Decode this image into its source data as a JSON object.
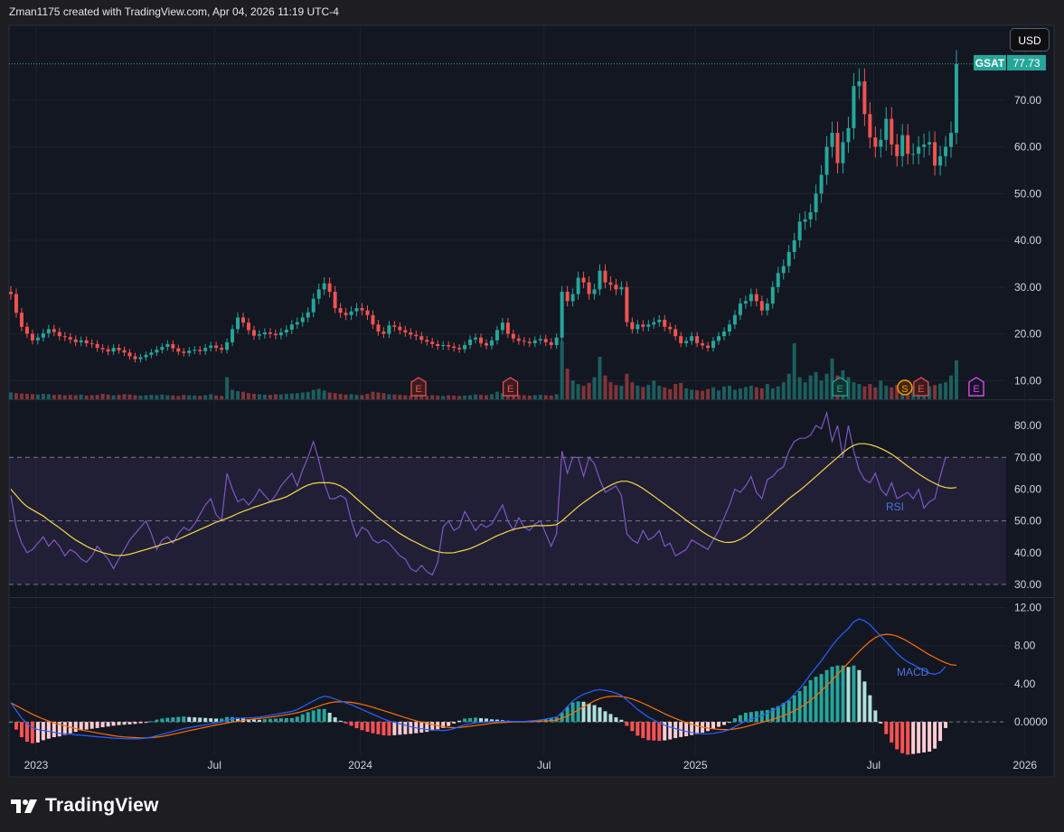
{
  "header": {
    "attribution": "Zman1175 created with TradingView.com, Apr 04, 2026 11:19 UTC-4"
  },
  "toolbar": {
    "currency_label": "USD"
  },
  "brand": {
    "logo_icon": "tradingview-logo-icon",
    "name": "TradingView"
  },
  "colors": {
    "up": "#26a69a",
    "down": "#ef5350",
    "rsi": "#7e57c2",
    "rsi_ma": "#f5d547",
    "macd": "#2962ff",
    "signal": "#ff6d00",
    "bg": "#131722"
  },
  "chart_data": [
    {
      "type": "candlestick",
      "symbol": "GSAT",
      "last_price": "77.73",
      "ylim": [
        6,
        86
      ],
      "y_ticks": [
        "10.00",
        "20.00",
        "30.00",
        "40.00",
        "50.00",
        "60.00",
        "70.00"
      ],
      "x_ticks": [
        "2023",
        "Jul",
        "2024",
        "Jul",
        "2025",
        "Jul",
        "2026"
      ],
      "closes": [
        28.5,
        24.5,
        21.5,
        20.0,
        18.6,
        19.2,
        20.1,
        21.0,
        20.4,
        19.5,
        19.3,
        18.8,
        18.2,
        18.6,
        18.0,
        17.8,
        17.0,
        16.7,
        16.2,
        17.0,
        16.5,
        16.0,
        15.2,
        14.6,
        15.0,
        15.5,
        16.0,
        16.6,
        17.2,
        17.8,
        16.9,
        16.2,
        15.9,
        16.4,
        16.6,
        16.3,
        17.0,
        17.5,
        17.0,
        16.6,
        18.2,
        21.0,
        23.5,
        22.4,
        20.8,
        19.6,
        19.9,
        20.3,
        20.0,
        19.7,
        20.3,
        20.9,
        22.0,
        22.5,
        23.5,
        24.6,
        27.5,
        29.5,
        30.8,
        29.0,
        25.5,
        24.5,
        24.0,
        24.8,
        25.5,
        25.0,
        24.0,
        22.0,
        20.5,
        20.0,
        21.8,
        21.5,
        20.8,
        20.3,
        19.8,
        19.5,
        18.7,
        18.3,
        17.8,
        17.4,
        17.6,
        17.3,
        17.0,
        16.7,
        17.6,
        18.8,
        19.2,
        18.0,
        17.5,
        18.6,
        20.8,
        22.4,
        20.0,
        19.0,
        18.5,
        18.3,
        18.0,
        18.6,
        18.9,
        18.2,
        17.6,
        19.2,
        29.0,
        27.0,
        28.5,
        32.0,
        31.0,
        28.5,
        29.5,
        33.5,
        31.0,
        30.5,
        29.5,
        30.0,
        22.5,
        21.0,
        22.0,
        21.5,
        22.0,
        22.5,
        23.0,
        21.5,
        21.0,
        19.5,
        18.0,
        18.5,
        19.5,
        18.0,
        17.5,
        17.0,
        18.5,
        19.5,
        20.5,
        22.0,
        24.0,
        26.5,
        27.0,
        28.5,
        27.0,
        25.0,
        26.5,
        30.0,
        33.0,
        34.5,
        37.5,
        40.0,
        44.0,
        44.5,
        46.0,
        50.0,
        54.0,
        60.0,
        63.0,
        56.5,
        61.0,
        64.0,
        73.0,
        74.0,
        67.0,
        62.0,
        60.0,
        61.5,
        66.0,
        60.5,
        58.0,
        62.5,
        58.5,
        58.5,
        60.0,
        60.5,
        61.0,
        56.0,
        58.0,
        60.0,
        63.0,
        77.73
      ],
      "volumes": [
        2.0,
        1.8,
        1.7,
        1.6,
        1.5,
        1.4,
        1.6,
        1.5,
        1.3,
        1.4,
        1.2,
        1.3,
        1.2,
        1.4,
        1.1,
        1.2,
        1.3,
        1.6,
        1.4,
        1.2,
        1.3,
        1.5,
        1.4,
        1.2,
        1.1,
        1.2,
        1.3,
        1.2,
        1.4,
        1.2,
        1.1,
        1.0,
        1.3,
        1.2,
        1.1,
        1.0,
        1.2,
        1.5,
        1.1,
        1.0,
        6.5,
        2.8,
        2.4,
        2.2,
        1.8,
        1.6,
        1.5,
        1.4,
        1.3,
        1.5,
        1.4,
        1.6,
        1.7,
        1.8,
        2.0,
        2.2,
        2.8,
        3.1,
        2.6,
        2.0,
        1.8,
        1.6,
        1.4,
        1.5,
        1.3,
        1.2,
        1.6,
        2.2,
        2.0,
        1.8,
        1.5,
        1.4,
        1.3,
        1.2,
        1.1,
        1.2,
        1.1,
        1.0,
        1.2,
        1.1,
        1.0,
        1.2,
        1.1,
        1.0,
        1.1,
        1.2,
        1.4,
        1.3,
        1.2,
        1.5,
        2.2,
        1.8,
        1.6,
        1.4,
        1.3,
        1.2,
        1.1,
        1.2,
        1.3,
        1.2,
        1.1,
        1.5,
        17.0,
        9.0,
        5.5,
        4.5,
        4.0,
        4.8,
        6.5,
        12.5,
        7.0,
        5.0,
        4.2,
        4.0,
        7.5,
        5.0,
        4.0,
        3.6,
        4.2,
        5.5,
        4.0,
        3.5,
        3.0,
        4.5,
        4.8,
        3.2,
        2.8,
        2.6,
        2.5,
        3.0,
        3.5,
        2.6,
        3.8,
        4.0,
        2.8,
        3.2,
        3.6,
        4.0,
        3.5,
        3.2,
        4.5,
        3.2,
        3.8,
        5.0,
        7.5,
        16.5,
        6.5,
        5.0,
        7.0,
        8.0,
        5.5,
        7.5,
        12.0,
        7.0,
        8.5,
        6.5,
        5.0,
        4.5,
        3.8,
        4.5,
        3.5,
        5.5,
        4.0,
        3.5,
        4.2,
        4.8,
        3.6,
        3.5,
        4.0,
        4.5,
        3.8,
        4.2,
        4.6,
        5.0,
        7.0,
        11.5
      ],
      "earnings_markers": [
        {
          "label": "E",
          "kind": "past-down"
        },
        {
          "label": "E",
          "kind": "past-down"
        },
        {
          "label": "E",
          "kind": "past-up"
        },
        {
          "label": "S",
          "kind": "split"
        },
        {
          "label": "E",
          "kind": "past-down"
        },
        {
          "label": "E",
          "kind": "past-down"
        },
        {
          "label": "E",
          "kind": "past-up"
        },
        {
          "label": "E",
          "kind": "past-up"
        },
        {
          "label": "E",
          "kind": "past-down"
        },
        {
          "label": "E",
          "kind": "upcoming"
        }
      ]
    },
    {
      "type": "line",
      "name": "RSI",
      "ylim": [
        26,
        88
      ],
      "y_ticks": [
        "30.00",
        "40.00",
        "50.00",
        "60.00",
        "70.00",
        "80.00"
      ],
      "band_upper": 70,
      "band_lower": 30,
      "midline": 50,
      "rsi_values": [
        58,
        48,
        43,
        40,
        41,
        43,
        45,
        42,
        44,
        42,
        39,
        41,
        40,
        38,
        37,
        39,
        42,
        40,
        38,
        35,
        38,
        41,
        44,
        46,
        48,
        50,
        46,
        41,
        44,
        45,
        43,
        46,
        48,
        47,
        49,
        52,
        55,
        57,
        52,
        50,
        65,
        60,
        56,
        57,
        55,
        57,
        60,
        58,
        56,
        58,
        61,
        63,
        65,
        61,
        66,
        70,
        75,
        69,
        62,
        57,
        57,
        58,
        57,
        50,
        45,
        48,
        47,
        44,
        43,
        44,
        43,
        41,
        39,
        38,
        35,
        34,
        36,
        34,
        33,
        37,
        48,
        50,
        47,
        48,
        53,
        50,
        47,
        49,
        48,
        49,
        52,
        55,
        50,
        47,
        51,
        48,
        47,
        49,
        50,
        46,
        42,
        46,
        72,
        65,
        70,
        70,
        64,
        70,
        68,
        63,
        59,
        60,
        61,
        58,
        46,
        44,
        43,
        47,
        44,
        45,
        47,
        42,
        43,
        39,
        40,
        41,
        44,
        43,
        42,
        41,
        44,
        47,
        51,
        55,
        60,
        59,
        61,
        64,
        59,
        57,
        63,
        64,
        66,
        67,
        72,
        75,
        76,
        76,
        77,
        80,
        79,
        84,
        75,
        80,
        70,
        80,
        72,
        66,
        63,
        62,
        65,
        60,
        58,
        62,
        57,
        58,
        59,
        57,
        60,
        54,
        56,
        57,
        64,
        70
      ],
      "ma_values": [
        60,
        58,
        56,
        54.5,
        53.5,
        52.5,
        51.5,
        50.2,
        49,
        47.8,
        46.5,
        45.2,
        44,
        43,
        42,
        41.2,
        40.6,
        40,
        39.6,
        39.2,
        39.1,
        39.2,
        39.5,
        40,
        40.5,
        41,
        41.5,
        42,
        42.6,
        43,
        43.6,
        44.2,
        45,
        45.8,
        46.5,
        47.3,
        48,
        48.8,
        49.6,
        50.2,
        50.8,
        51.5,
        52.3,
        53,
        53.6,
        54.3,
        54.8,
        55.4,
        56,
        56.5,
        57,
        57.6,
        58.5,
        59.5,
        60.5,
        61.3,
        61.8,
        62,
        62,
        62,
        61.7,
        61,
        60,
        58.5,
        57,
        55.5,
        54,
        52.5,
        51,
        49.8,
        48.5,
        47.2,
        46,
        45,
        44,
        43.2,
        42.3,
        41.5,
        40.8,
        40.3,
        40,
        39.9,
        40,
        40.4,
        40.8,
        41.3,
        42,
        42.8,
        43.6,
        44.5,
        45.3,
        46,
        46.7,
        47.3,
        47.7,
        48,
        48.3,
        48.5,
        48.5,
        48.5,
        48.6,
        48.8,
        50,
        51.5,
        53,
        54.5,
        55.8,
        57,
        58.2,
        59.3,
        60.3,
        61.2,
        62,
        62.5,
        62.5,
        62,
        61.2,
        60.2,
        59,
        57.8,
        56.5,
        55.3,
        54,
        52.8,
        51.5,
        50.2,
        49,
        47.8,
        46.6,
        45.5,
        44.6,
        43.8,
        43.3,
        43.2,
        43.5,
        44.2,
        45.2,
        46.5,
        48,
        49.5,
        51,
        52.5,
        54,
        55.5,
        57,
        58.3,
        59.6,
        61,
        62.5,
        64,
        65.5,
        67,
        68.5,
        70,
        71.5,
        72.8,
        73.8,
        74.3,
        74.3,
        74,
        73.5,
        72.8,
        72,
        71,
        69.8,
        68.5,
        67.2,
        66,
        64.8,
        63.7,
        62.7,
        61.8,
        61,
        60.5,
        60.3,
        60.5
      ]
    },
    {
      "type": "line",
      "name": "MACD",
      "ylim": [
        -3.4,
        13.0
      ],
      "y_ticks": [
        "0.0000",
        "4.00",
        "8.00",
        "12.00"
      ],
      "macd_values": [
        2.0,
        1.2,
        0.4,
        -0.2,
        -0.6,
        -0.8,
        -0.9,
        -1.0,
        -1.1,
        -1.2,
        -1.25,
        -1.3,
        -1.35,
        -1.4,
        -1.45,
        -1.5,
        -1.55,
        -1.6,
        -1.65,
        -1.7,
        -1.73,
        -1.76,
        -1.78,
        -1.78,
        -1.76,
        -1.7,
        -1.6,
        -1.45,
        -1.3,
        -1.15,
        -1.0,
        -0.85,
        -0.7,
        -0.6,
        -0.5,
        -0.4,
        -0.3,
        -0.2,
        -0.1,
        0.0,
        0.2,
        0.3,
        0.35,
        0.4,
        0.42,
        0.45,
        0.5,
        0.6,
        0.7,
        0.8,
        0.9,
        1.0,
        1.1,
        1.3,
        1.6,
        1.9,
        2.2,
        2.5,
        2.7,
        2.6,
        2.4,
        2.2,
        2.0,
        1.8,
        1.55,
        1.3,
        1.05,
        0.8,
        0.55,
        0.3,
        0.1,
        -0.05,
        -0.2,
        -0.35,
        -0.5,
        -0.62,
        -0.72,
        -0.8,
        -0.85,
        -0.88,
        -0.9,
        -0.85,
        -0.7,
        -0.5,
        -0.3,
        -0.2,
        -0.1,
        -0.05,
        0.0,
        0.02,
        0.05,
        0.05,
        0.05,
        0.05,
        0.05,
        0.05,
        0.1,
        0.15,
        0.2,
        0.3,
        0.4,
        0.5,
        1.0,
        1.6,
        2.2,
        2.6,
        2.9,
        3.1,
        3.3,
        3.4,
        3.3,
        3.2,
        3.0,
        2.8,
        2.3,
        1.8,
        1.3,
        0.9,
        0.5,
        0.2,
        -0.1,
        -0.35,
        -0.55,
        -0.7,
        -0.85,
        -1.0,
        -1.1,
        -1.2,
        -1.25,
        -1.25,
        -1.2,
        -1.1,
        -1.0,
        -0.8,
        -0.5,
        -0.2,
        0.1,
        0.3,
        0.5,
        0.7,
        0.9,
        1.2,
        1.5,
        1.9,
        2.3,
        2.9,
        3.5,
        4.2,
        5.0,
        5.7,
        6.4,
        7.2,
        8.0,
        8.7,
        9.3,
        9.8,
        10.5,
        10.8,
        10.6,
        10.2,
        9.6,
        9.0,
        8.4,
        7.8,
        7.2,
        6.7,
        6.3,
        6.0,
        5.7,
        5.4,
        5.1,
        5.0,
        5.2,
        5.8
      ],
      "signal_values": [
        2.0,
        1.7,
        1.4,
        1.1,
        0.8,
        0.55,
        0.3,
        0.1,
        -0.1,
        -0.25,
        -0.4,
        -0.55,
        -0.7,
        -0.85,
        -0.95,
        -1.05,
        -1.15,
        -1.25,
        -1.35,
        -1.45,
        -1.52,
        -1.58,
        -1.62,
        -1.65,
        -1.67,
        -1.67,
        -1.65,
        -1.6,
        -1.52,
        -1.42,
        -1.3,
        -1.18,
        -1.05,
        -0.92,
        -0.8,
        -0.68,
        -0.56,
        -0.44,
        -0.32,
        -0.22,
        -0.12,
        -0.02,
        0.08,
        0.16,
        0.24,
        0.3,
        0.36,
        0.42,
        0.5,
        0.58,
        0.66,
        0.75,
        0.85,
        0.96,
        1.1,
        1.26,
        1.45,
        1.65,
        1.85,
        2.0,
        2.1,
        2.12,
        2.1,
        2.05,
        1.96,
        1.84,
        1.7,
        1.54,
        1.36,
        1.18,
        1.0,
        0.82,
        0.64,
        0.46,
        0.28,
        0.12,
        -0.02,
        -0.15,
        -0.28,
        -0.4,
        -0.5,
        -0.58,
        -0.6,
        -0.58,
        -0.52,
        -0.45,
        -0.38,
        -0.3,
        -0.22,
        -0.15,
        -0.1,
        -0.06,
        -0.03,
        -0.01,
        0.0,
        0.01,
        0.02,
        0.04,
        0.07,
        0.1,
        0.14,
        0.2,
        0.38,
        0.62,
        0.92,
        1.25,
        1.58,
        1.9,
        2.2,
        2.45,
        2.6,
        2.68,
        2.7,
        2.66,
        2.56,
        2.4,
        2.2,
        1.96,
        1.7,
        1.42,
        1.14,
        0.86,
        0.6,
        0.36,
        0.14,
        -0.06,
        -0.24,
        -0.4,
        -0.54,
        -0.65,
        -0.73,
        -0.78,
        -0.8,
        -0.8,
        -0.74,
        -0.64,
        -0.5,
        -0.35,
        -0.2,
        -0.04,
        0.12,
        0.28,
        0.46,
        0.66,
        0.9,
        1.16,
        1.48,
        1.84,
        2.26,
        2.74,
        3.26,
        3.8,
        4.38,
        5.0,
        5.6,
        6.2,
        6.8,
        7.4,
        7.95,
        8.45,
        8.85,
        9.1,
        9.2,
        9.15,
        9.0,
        8.75,
        8.45,
        8.1,
        7.75,
        7.4,
        7.05,
        6.75,
        6.45,
        6.2,
        6.0,
        5.95
      ]
    }
  ],
  "indicator_labels": {
    "rsi": "RSI",
    "macd": "MACD"
  }
}
